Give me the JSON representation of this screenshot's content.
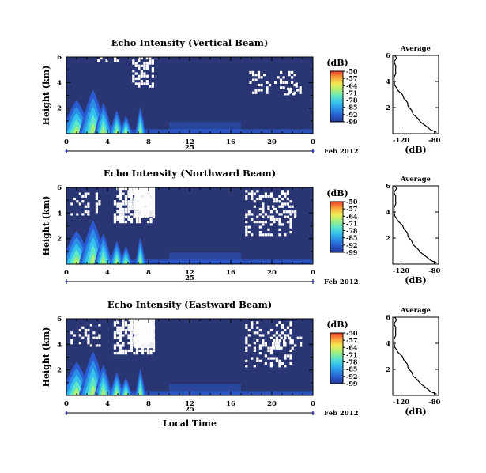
{
  "chart_data": [
    {
      "type": "heatmap",
      "title": "Echo Intensity (Vertical Beam)",
      "ylabel": "Height (km)",
      "xticks": [
        "0",
        "4",
        "8",
        "12",
        "16",
        "20",
        "0"
      ],
      "xlim": [
        0,
        24
      ],
      "yticks": [
        "6",
        "4",
        "2"
      ],
      "ylim": [
        0,
        6
      ],
      "date_tick": "25",
      "date_label": "Feb 2012",
      "colorbar": {
        "unit": "(dB)",
        "ticks": [
          "-50",
          "-57",
          "-64",
          "-71",
          "-78",
          "-85",
          "-92",
          "-99"
        ],
        "range": [
          -99,
          -50
        ]
      },
      "average": {
        "title": "Average",
        "xlabel": "(dB)",
        "xticks": [
          "-120",
          "-80"
        ],
        "xlim": [
          -130,
          -75
        ],
        "yticks": [
          "6",
          "4",
          "2"
        ],
        "ylim": [
          0,
          6
        ]
      }
    },
    {
      "type": "heatmap",
      "title": "Echo Intensity (Northward Beam)",
      "ylabel": "Height (km)",
      "xticks": [
        "0",
        "4",
        "8",
        "12",
        "16",
        "20",
        "0"
      ],
      "xlim": [
        0,
        24
      ],
      "yticks": [
        "6",
        "4",
        "2"
      ],
      "ylim": [
        0,
        6
      ],
      "date_tick": "25",
      "date_label": "Feb 2012",
      "colorbar": {
        "unit": "(dB)",
        "ticks": [
          "-50",
          "-57",
          "-64",
          "-71",
          "-78",
          "-85",
          "-92",
          "-99"
        ],
        "range": [
          -99,
          -50
        ]
      },
      "average": {
        "title": "Average",
        "xlabel": "(dB)",
        "xticks": [
          "-120",
          "-80"
        ],
        "xlim": [
          -130,
          -75
        ],
        "yticks": [
          "6",
          "4",
          "2"
        ],
        "ylim": [
          0,
          6
        ]
      }
    },
    {
      "type": "heatmap",
      "title": "Echo Intensity (Eastward Beam)",
      "ylabel": "Height (km)",
      "xlabel": "Local Time",
      "xticks": [
        "0",
        "4",
        "8",
        "12",
        "16",
        "20",
        "0"
      ],
      "xlim": [
        0,
        24
      ],
      "yticks": [
        "6",
        "4",
        "2"
      ],
      "ylim": [
        0,
        6
      ],
      "date_tick": "25",
      "date_label": "Feb 2012",
      "colorbar": {
        "unit": "(dB)",
        "ticks": [
          "-50",
          "-57",
          "-64",
          "-71",
          "-78",
          "-85",
          "-92",
          "-99"
        ],
        "range": [
          -99,
          -50
        ]
      },
      "average": {
        "title": "Average",
        "xlabel": "(dB)",
        "xticks": [
          "-120",
          "-80"
        ],
        "xlim": [
          -130,
          -75
        ],
        "yticks": [
          "6",
          "4",
          "2"
        ],
        "ylim": [
          0,
          6
        ]
      }
    }
  ],
  "profile": {
    "height_km": [
      0.1,
      0.3,
      0.6,
      0.9,
      1.2,
      1.5,
      1.8,
      2.1,
      2.4,
      2.7,
      3.0,
      3.3,
      3.5,
      3.7,
      4.0,
      4.3,
      4.6,
      4.9,
      5.2,
      5.5,
      5.8,
      6.0
    ],
    "avg_db": [
      -78,
      -84,
      -91,
      -96,
      -101,
      -105,
      -108,
      -111,
      -113,
      -116,
      -119,
      -123,
      -126,
      -127,
      -129,
      -128,
      -127,
      -126,
      -127,
      -128,
      -126,
      -127
    ]
  },
  "colors": [
    "#233b94",
    "#2b5bd0",
    "#2a8ee6",
    "#35c2ee",
    "#5ee6c6",
    "#a8f07a",
    "#f2ea55",
    "#fba43a",
    "#ee3e2a"
  ],
  "background_color": "#2a3573",
  "blank_color": "#ffffff"
}
